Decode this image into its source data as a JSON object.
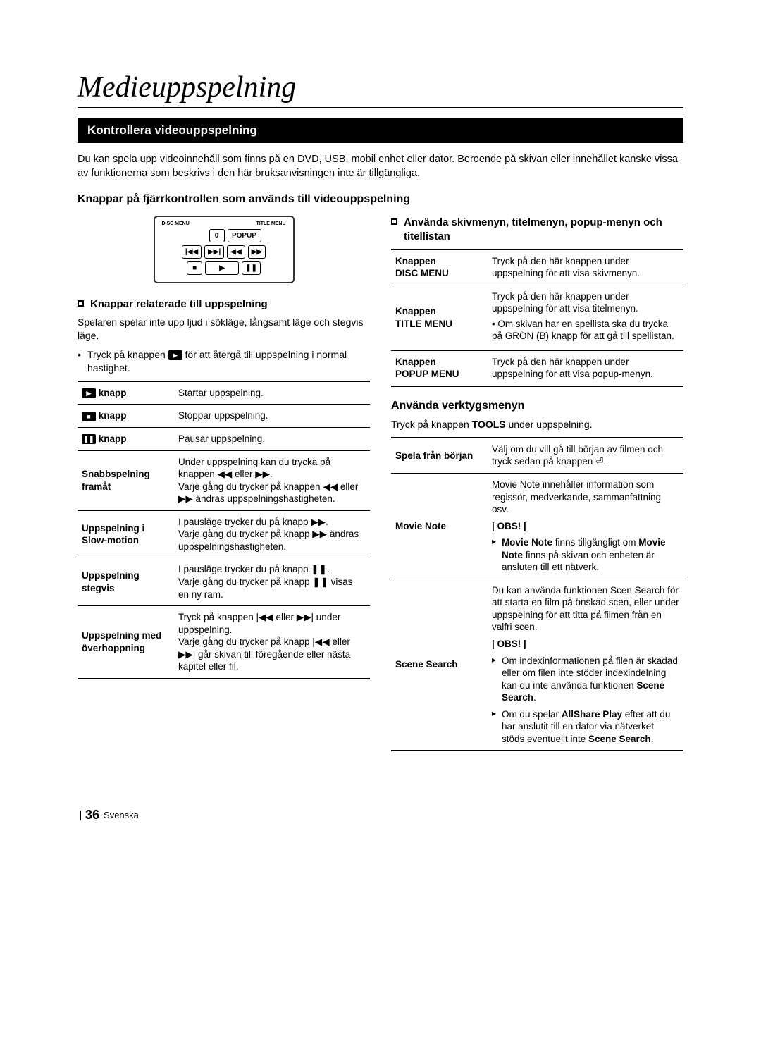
{
  "page_title": "Medieuppspelning",
  "section_bar": "Kontrollera videouppspelning",
  "intro": "Du kan spela upp videoinnehåll som finns på en DVD, USB, mobil enhet eller dator. Beroende på skivan eller innehållet kanske vissa av funktionerna som beskrivs i den här bruksanvisningen inte är tillgängliga.",
  "sub_heading": "Knappar på fjärrkontrollen som används till videouppspelning",
  "remote": {
    "disc_menu": "DISC MENU",
    "title_menu": "TITLE MENU",
    "zero": "0",
    "popup": "POPUP"
  },
  "left": {
    "h": "Knappar relaterade till uppspelning",
    "para1": "Spelaren spelar inte upp ljud i sökläge, långsamt läge och stegvis läge.",
    "bullet1_a": "Tryck på knappen ",
    "bullet1_b": " för att återgå till uppspelning i normal hastighet.",
    "table": [
      {
        "k": "knapp_play",
        "icon": "▶",
        "label": " knapp",
        "v": "Startar uppspelning."
      },
      {
        "k": "knapp_stop",
        "icon": "■",
        "label": " knapp",
        "v": "Stoppar uppspelning."
      },
      {
        "k": "knapp_pause",
        "icon": "❚❚",
        "label": " knapp",
        "v": "Pausar uppspelning."
      },
      {
        "k": "snabb",
        "label": "Snabbspelning framåt",
        "v_lines": [
          "Under uppspelning kan du trycka på knappen ◀◀ eller ▶▶.",
          "Varje gång du trycker på knappen ◀◀ eller ▶▶ ändras uppspelningshastigheten."
        ]
      },
      {
        "k": "slow",
        "label": "Uppspelning i Slow-motion",
        "v_lines": [
          "I pausläge trycker du på knapp ▶▶.",
          "Varje gång du trycker på knapp ▶▶ ändras uppspelningshastigheten."
        ]
      },
      {
        "k": "step",
        "label": "Uppspelning stegvis",
        "v_lines": [
          "I pausläge trycker du på knapp ❚❚.",
          "Varje gång du trycker på knapp ❚❚ visas en ny ram."
        ]
      },
      {
        "k": "skip",
        "label": "Uppspelning med överhoppning",
        "v_lines": [
          "Tryck på knappen |◀◀ eller ▶▶| under uppspelning.",
          "Varje gång du trycker på knapp |◀◀ eller ▶▶| går skivan till föregående eller nästa kapitel eller fil."
        ]
      }
    ]
  },
  "right": {
    "h": "Använda skivmenyn, titelmenyn, popup-menyn och titellistan",
    "table": [
      {
        "k": "Knappen DISC MENU",
        "v": "Tryck på den här knappen under uppspelning för att visa skivmenyn."
      },
      {
        "k": "Knappen TITLE MENU",
        "v_lines": [
          "Tryck på den här knappen under uppspelning för att visa titelmenyn.",
          "• Om skivan har en spellista ska du trycka på GRÖN (B) knapp för att gå till spellistan."
        ]
      },
      {
        "k": "Knappen POPUP MENU",
        "v": "Tryck på den här knappen under uppspelning för att visa popup-menyn."
      }
    ],
    "h2": "Använda verktygsmenyn",
    "para2_a": "Tryck på knappen ",
    "para2_b": "TOOLS",
    "para2_c": " under uppspelning.",
    "table2": [
      {
        "k": "Spela från början",
        "v": "Välj om du vill gå till början av filmen och tryck sedan på knappen ⏎."
      },
      {
        "k": "Movie Note",
        "v_lines": [
          "Movie Note innehåller information som regissör, medverkande, sammanfattning osv."
        ],
        "note": "| OBS! |",
        "tris": [
          "Movie Note finns tillgängligt om Movie Note finns på skivan och enheten är ansluten till ett nätverk."
        ]
      },
      {
        "k": "Scene Search",
        "v_lines": [
          "Du kan använda funktionen Scen Search för att starta en film på önskad scen, eller under uppspelning för att titta på filmen från en valfri scen."
        ],
        "note": "| OBS! |",
        "tris": [
          "Om indexinformationen på filen är skadad eller om filen inte stöder indexindelning kan du inte använda funktionen Scene Search.",
          "Om du spelar AllShare Play efter att du har anslutit till en dator via nätverket stöds eventuellt inte Scene Search."
        ]
      }
    ]
  },
  "footer": {
    "page_num": "36",
    "lang": "Svenska"
  }
}
